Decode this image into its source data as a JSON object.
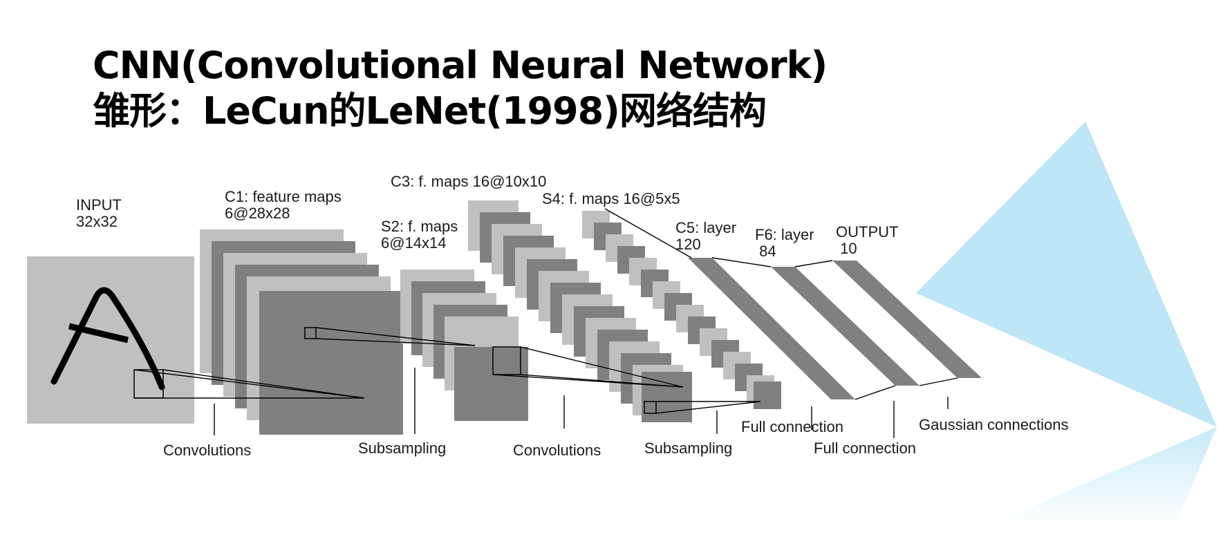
{
  "title": {
    "line1": "CNN(Convolutional Neural Network)",
    "line2": "雏形：LeCun的LeNet(1998)网络结构"
  },
  "layers": {
    "input": [
      "INPUT",
      "32x32"
    ],
    "c1": [
      "C1: feature maps",
      "6@28x28"
    ],
    "s2": [
      "S2: f. maps",
      "6@14x14"
    ],
    "c3": [
      "C3: f. maps 16@10x10"
    ],
    "s4": [
      "S4: f. maps 16@5x5"
    ],
    "c5": [
      "C5: layer",
      "120"
    ],
    "f6": [
      "F6: layer",
      " 84"
    ],
    "output": [
      "OUTPUT",
      " 10"
    ]
  },
  "operations": {
    "conv1": "Convolutions",
    "sub1": "Subsampling",
    "conv2": "Convolutions",
    "sub2": "Subsampling",
    "full1": "Full connection",
    "full2": "Full connection",
    "gauss": "Gaussian connections"
  },
  "colors": {
    "light_map": "#c0c0c0",
    "dark_map": "#808080",
    "accent_triangle": "#bde6f7"
  }
}
